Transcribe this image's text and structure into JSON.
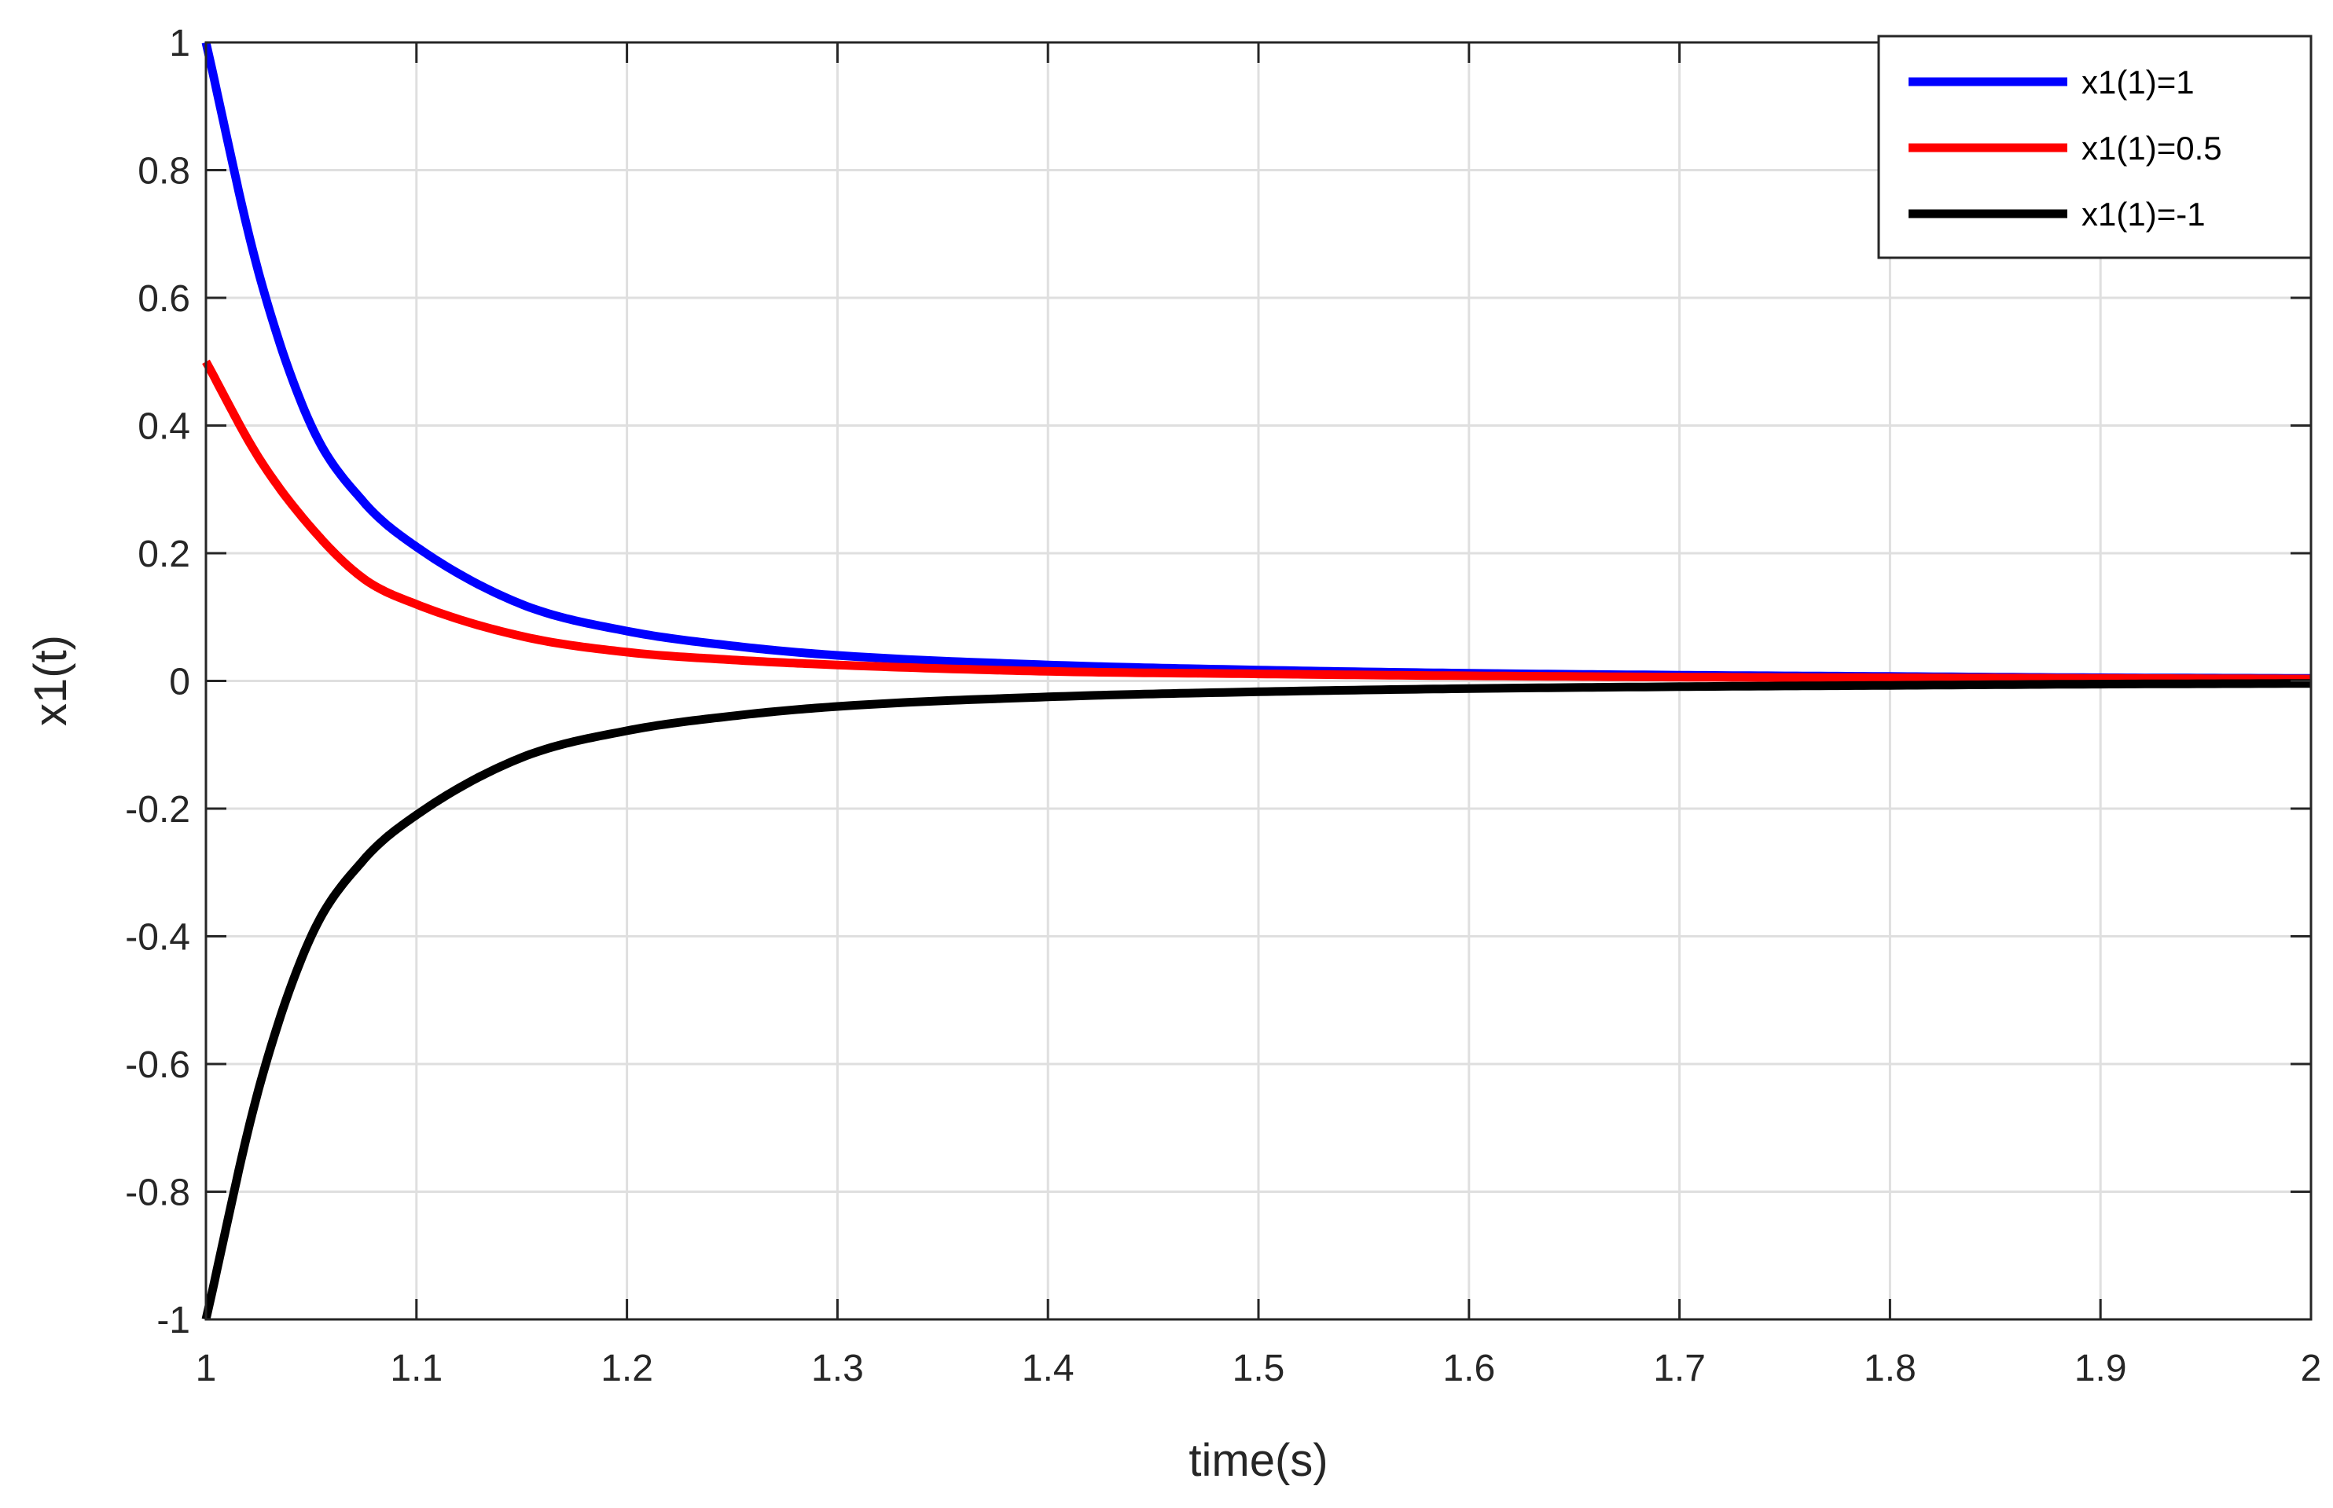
{
  "chart_data": {
    "type": "line",
    "title": "",
    "xlabel": "time(s)",
    "ylabel": "x1(t)",
    "xlim": [
      1,
      2
    ],
    "ylim": [
      -1,
      1
    ],
    "grid": true,
    "legend_position": "top-right",
    "xticks": [
      "1",
      "1.1",
      "1.2",
      "1.3",
      "1.4",
      "1.5",
      "1.6",
      "1.7",
      "1.8",
      "1.9",
      "2"
    ],
    "yticks": [
      "-1",
      "-0.8",
      "-0.6",
      "-0.4",
      "-0.2",
      "0",
      "0.2",
      "0.4",
      "0.6",
      "0.8",
      "1"
    ],
    "x": [
      1.0,
      1.025,
      1.05,
      1.075,
      1.1,
      1.15,
      1.2,
      1.25,
      1.3,
      1.4,
      1.5,
      1.6,
      1.7,
      1.8,
      1.9,
      2.0
    ],
    "series": [
      {
        "name": "x1(1)=1",
        "color": "#0000ff",
        "values": [
          1.0,
          0.64,
          0.4,
          0.28,
          0.21,
          0.12,
          0.078,
          0.055,
          0.04,
          0.025,
          0.017,
          0.012,
          0.009,
          0.007,
          0.005,
          0.004
        ]
      },
      {
        "name": "x1(1)=0.5",
        "color": "#ff0000",
        "values": [
          0.5,
          0.35,
          0.24,
          0.16,
          0.12,
          0.07,
          0.045,
          0.033,
          0.025,
          0.015,
          0.011,
          0.008,
          0.006,
          0.005,
          0.004,
          0.003
        ]
      },
      {
        "name": "x1(1)=-1",
        "color": "#000000",
        "values": [
          -1.0,
          -0.64,
          -0.4,
          -0.28,
          -0.21,
          -0.12,
          -0.078,
          -0.055,
          -0.04,
          -0.025,
          -0.017,
          -0.012,
          -0.009,
          -0.007,
          -0.005,
          -0.004
        ]
      }
    ]
  }
}
